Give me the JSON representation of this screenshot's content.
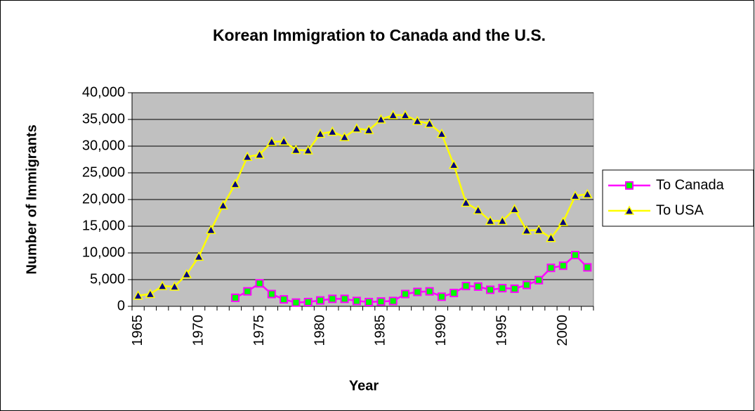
{
  "chart_data": {
    "type": "line",
    "title": "Korean Immigration to Canada and the U.S.",
    "x_label": "Year",
    "y_label": "Number of Immigrants",
    "categories": [
      "1965",
      null,
      null,
      null,
      null,
      "1970",
      null,
      null,
      null,
      null,
      "1975",
      null,
      null,
      null,
      null,
      "1980",
      null,
      null,
      null,
      null,
      "1985",
      null,
      null,
      null,
      null,
      "1990",
      null,
      null,
      null,
      null,
      "1995",
      null,
      null,
      null,
      null,
      "2000",
      null,
      null
    ],
    "series": [
      {
        "name": "To Canada",
        "color": "#ff00ff",
        "marker_color": "#00ff00",
        "marker": "square",
        "values": [
          null,
          null,
          null,
          null,
          null,
          null,
          null,
          null,
          1600,
          2800,
          4300,
          2300,
          1300,
          700,
          800,
          1100,
          1400,
          1400,
          1000,
          800,
          900,
          1000,
          2300,
          2700,
          2800,
          1800,
          2500,
          3800,
          3700,
          3100,
          3400,
          3300,
          4000,
          4900,
          7200,
          7600,
          9600,
          7300
        ]
      },
      {
        "name": "To USA",
        "color": "#ffff00",
        "marker_color": "#000080",
        "marker": "triangle",
        "values": [
          2000,
          2300,
          3800,
          3700,
          6000,
          9300,
          14300,
          18900,
          22900,
          28000,
          28400,
          30800,
          30900,
          29300,
          29200,
          32300,
          32700,
          31700,
          33300,
          33000,
          35000,
          35800,
          35800,
          34700,
          34200,
          32300,
          26500,
          19400,
          18000,
          16000,
          16000,
          18200,
          14200,
          14300,
          12800,
          15800,
          20700,
          21000
        ]
      }
    ],
    "ylim": [
      0,
      40000
    ],
    "yticks": [
      0,
      {
        "value": 5000,
        "label": "5,000"
      },
      {
        "value": 10000,
        "label": "10,000"
      },
      {
        "value": 15000,
        "label": "15,000"
      },
      {
        "value": 20000,
        "label": "20,000"
      },
      {
        "value": 25000,
        "label": "25,000"
      },
      {
        "value": 30000,
        "label": "30,000"
      },
      {
        "value": 35000,
        "label": "35,000"
      },
      {
        "value": 40000,
        "label": "40,000"
      }
    ],
    "grid": true,
    "plot_background": "#c0c0c0",
    "legend": "right"
  }
}
